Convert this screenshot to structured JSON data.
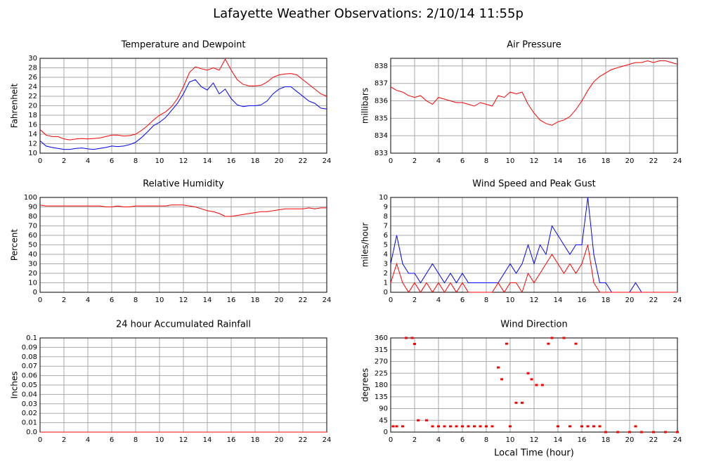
{
  "title": "Lafayette Weather Observations: 2/10/14 11:55p",
  "chart_data": [
    {
      "type": "line",
      "title": "Temperature and Dewpoint",
      "ylabel": "Fahrenheit",
      "grid": true,
      "x": [
        0,
        0.5,
        1,
        1.5,
        2,
        2.5,
        3,
        3.5,
        4,
        4.5,
        5,
        5.5,
        6,
        6.5,
        7,
        7.5,
        8,
        8.5,
        9,
        9.5,
        10,
        10.5,
        11,
        11.5,
        12,
        12.5,
        13,
        13.5,
        14,
        14.5,
        15,
        15.5,
        16,
        16.5,
        17,
        17.5,
        18,
        18.5,
        19,
        19.5,
        20,
        20.5,
        21,
        21.5,
        22,
        22.5,
        23,
        23.5,
        24
      ],
      "series": [
        {
          "color": "#ff0000",
          "values": [
            15,
            13.8,
            13.5,
            13.5,
            13,
            12.8,
            13,
            13.1,
            13,
            13.1,
            13.2,
            13.5,
            13.8,
            13.8,
            13.6,
            13.7,
            14,
            14.8,
            15.8,
            17,
            18,
            18.7,
            19.8,
            21.5,
            24,
            27,
            28.2,
            27.8,
            27.5,
            28,
            27.5,
            29.8,
            27.5,
            25.5,
            24.5,
            24.2,
            24.2,
            24.3,
            25,
            26,
            26.5,
            26.7,
            26.8,
            26.5,
            25.5,
            24.5,
            23.5,
            22.5,
            22
          ]
        },
        {
          "color": "#0000ff",
          "values": [
            12.6,
            11.5,
            11.2,
            11,
            10.8,
            10.8,
            11,
            11.1,
            10.9,
            10.8,
            11,
            11.2,
            11.5,
            11.4,
            11.5,
            11.8,
            12.3,
            13.3,
            14.5,
            15.8,
            16.5,
            17.5,
            19,
            20.5,
            22.5,
            25,
            25.5,
            24,
            23.3,
            24.8,
            22.5,
            23.5,
            21.5,
            20.2,
            19.8,
            20,
            20,
            20.2,
            21,
            22.5,
            23.5,
            24,
            24,
            23,
            22,
            21,
            20.5,
            19.5,
            19.3
          ]
        }
      ],
      "xlim": [
        0,
        24
      ],
      "xticks": [
        0,
        2,
        4,
        6,
        8,
        10,
        12,
        14,
        16,
        18,
        20,
        22,
        24
      ],
      "ylim": [
        10,
        30
      ],
      "yticks": [
        10,
        12,
        14,
        16,
        18,
        20,
        22,
        24,
        26,
        28,
        30
      ]
    },
    {
      "type": "line",
      "title": "Air Pressure",
      "ylabel": "millibars",
      "grid": true,
      "x": [
        0,
        0.5,
        1,
        1.5,
        2,
        2.5,
        3,
        3.5,
        4,
        4.5,
        5,
        5.5,
        6,
        6.5,
        7,
        7.5,
        8,
        8.5,
        9,
        9.5,
        10,
        10.5,
        11,
        11.5,
        12,
        12.5,
        13,
        13.5,
        14,
        14.5,
        15,
        15.5,
        16,
        16.5,
        17,
        17.5,
        18,
        18.5,
        19,
        19.5,
        20,
        20.5,
        21,
        21.5,
        22,
        22.5,
        23,
        23.5,
        24
      ],
      "series": [
        {
          "color": "#ff0000",
          "values": [
            836.8,
            836.6,
            836.5,
            836.3,
            836.2,
            836.3,
            836.0,
            835.8,
            836.2,
            836.1,
            836.0,
            835.9,
            835.9,
            835.8,
            835.7,
            835.9,
            835.8,
            835.7,
            836.3,
            836.2,
            836.5,
            836.4,
            836.5,
            835.8,
            835.3,
            834.9,
            834.7,
            834.6,
            834.8,
            834.9,
            835.1,
            835.5,
            836.0,
            836.6,
            837.1,
            837.4,
            837.6,
            837.8,
            837.9,
            838.0,
            838.1,
            838.2,
            838.2,
            838.3,
            838.2,
            838.3,
            838.3,
            838.2,
            838.1
          ]
        }
      ],
      "xlim": [
        0,
        24
      ],
      "xticks": [
        0,
        2,
        4,
        6,
        8,
        10,
        12,
        14,
        16,
        18,
        20,
        22,
        24
      ],
      "ylim": [
        833,
        838.44
      ],
      "yticks": [
        833,
        834,
        835,
        836,
        837,
        838
      ]
    },
    {
      "type": "line",
      "title": "Relative Humidity",
      "ylabel": "Percent",
      "grid": true,
      "x": [
        0,
        0.5,
        1,
        1.5,
        2,
        2.5,
        3,
        3.5,
        4,
        4.5,
        5,
        5.5,
        6,
        6.5,
        7,
        7.5,
        8,
        8.5,
        9,
        9.5,
        10,
        10.5,
        11,
        11.5,
        12,
        12.5,
        13,
        13.5,
        14,
        14.5,
        15,
        15.5,
        16,
        16.5,
        17,
        17.5,
        18,
        18.5,
        19,
        19.5,
        20,
        20.5,
        21,
        21.5,
        22,
        22.5,
        23,
        23.5,
        24
      ],
      "series": [
        {
          "color": "#ff0000",
          "values": [
            92,
            91,
            91,
            91,
            91,
            91,
            91,
            91,
            91,
            91,
            91,
            90,
            90,
            91,
            90,
            90,
            91,
            91,
            91,
            91,
            91,
            91,
            92,
            92,
            92,
            91,
            90,
            88,
            86,
            85,
            83,
            80,
            80,
            81,
            82,
            83,
            84,
            85,
            85,
            86,
            87,
            88,
            88,
            88,
            88,
            89,
            88,
            89,
            89
          ]
        }
      ],
      "xlim": [
        0,
        24
      ],
      "xticks": [
        0,
        2,
        4,
        6,
        8,
        10,
        12,
        14,
        16,
        18,
        20,
        22,
        24
      ],
      "ylim": [
        0,
        100
      ],
      "yticks": [
        0,
        10,
        20,
        30,
        40,
        50,
        60,
        70,
        80,
        90,
        100
      ]
    },
    {
      "type": "line",
      "title": "Wind Speed and Peak Gust",
      "ylabel": "miles/hour",
      "grid": true,
      "x": [
        0,
        0.5,
        1,
        1.5,
        2,
        2.5,
        3,
        3.5,
        4,
        4.5,
        5,
        5.5,
        6,
        6.5,
        7,
        7.5,
        8,
        8.5,
        9,
        9.5,
        10,
        10.5,
        11,
        11.5,
        12,
        12.5,
        13,
        13.5,
        14,
        14.5,
        15,
        15.5,
        16,
        16.5,
        17,
        17.5,
        18,
        18.5,
        19,
        19.5,
        20,
        20.5,
        21,
        21.5,
        22,
        22.5,
        23,
        23.5,
        24
      ],
      "series": [
        {
          "color": "#0000ff",
          "values": [
            3,
            6,
            3,
            2,
            2,
            1,
            2,
            3,
            2,
            1,
            2,
            1,
            2,
            1,
            1,
            1,
            1,
            1,
            1,
            2,
            3,
            2,
            3,
            5,
            3,
            5,
            4,
            7,
            6,
            5,
            4,
            5,
            5,
            10,
            4,
            1,
            1,
            0,
            0,
            0,
            0,
            1,
            0,
            0,
            0,
            0,
            0,
            0,
            0
          ]
        },
        {
          "color": "#ff0000",
          "values": [
            1,
            3,
            1,
            0,
            1,
            0,
            1,
            0,
            1,
            0,
            1,
            0,
            1,
            0,
            0,
            0,
            0,
            0,
            1,
            0,
            1,
            1,
            0,
            2,
            1,
            2,
            3,
            4,
            3,
            2,
            3,
            2,
            3,
            5,
            1,
            0,
            0,
            0,
            0,
            0,
            0,
            0,
            0,
            0,
            0,
            0,
            0,
            0,
            0
          ]
        }
      ],
      "xlim": [
        0,
        24
      ],
      "xticks": [
        0,
        2,
        4,
        6,
        8,
        10,
        12,
        14,
        16,
        18,
        20,
        22,
        24
      ],
      "ylim": [
        0,
        10
      ],
      "yticks": [
        0,
        1,
        2,
        3,
        4,
        5,
        6,
        7,
        8,
        9,
        10
      ]
    },
    {
      "type": "line",
      "title": "24 hour Accumulated Rainfall",
      "ylabel": "Inches",
      "grid": true,
      "x": [
        0,
        24
      ],
      "series": [
        {
          "color": "#ff0000",
          "values": [
            0,
            0
          ]
        }
      ],
      "xlim": [
        0,
        24
      ],
      "xticks": [
        0,
        2,
        4,
        6,
        8,
        10,
        12,
        14,
        16,
        18,
        20,
        22,
        24
      ],
      "ylim": [
        0,
        0.1
      ],
      "yticks": [
        {
          "value": 0,
          "label": "0.0"
        },
        0.01,
        0.02,
        0.03,
        0.04,
        0.05,
        0.06,
        0.07,
        0.08,
        0.09,
        0.1
      ]
    },
    {
      "type": "scatter",
      "title": "Wind Direction",
      "ylabel": "degrees",
      "xlabel": "Local Time (hour)",
      "grid": true,
      "x": [
        0.2,
        0.5,
        1,
        1.3,
        1.8,
        2,
        2.3,
        3,
        3.5,
        4,
        4.5,
        5,
        5.5,
        6,
        6.5,
        7,
        7.5,
        8,
        8.5,
        9,
        9.3,
        9.7,
        10,
        10.5,
        11,
        11.5,
        11.8,
        12.2,
        12.7,
        13.2,
        13.5,
        14,
        14.5,
        15,
        15.5,
        16,
        16.5,
        17,
        17.5,
        18,
        19,
        20,
        20.5,
        21,
        22,
        23,
        24
      ],
      "series": [
        {
          "color": "#ff0000",
          "values": [
            22,
            22,
            22,
            360,
            360,
            337,
            45,
            45,
            22,
            22,
            22,
            22,
            22,
            22,
            22,
            22,
            22,
            22,
            22,
            247,
            202,
            338,
            22,
            112,
            112,
            225,
            202,
            180,
            180,
            338,
            360,
            22,
            360,
            22,
            338,
            22,
            22,
            22,
            22,
            0,
            0,
            0,
            22,
            0,
            0,
            0,
            0
          ]
        }
      ],
      "xlim": [
        0,
        24
      ],
      "xticks": [
        0,
        2,
        4,
        6,
        8,
        10,
        12,
        14,
        16,
        18,
        20,
        22,
        24
      ],
      "ylim": [
        0,
        360
      ],
      "yticks": [
        0,
        45,
        90,
        135,
        180,
        225,
        270,
        315,
        360
      ]
    }
  ]
}
